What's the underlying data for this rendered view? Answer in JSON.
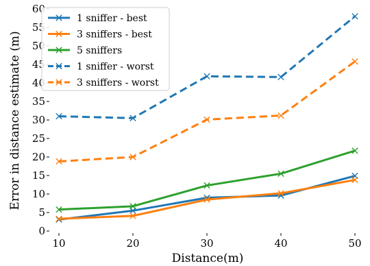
{
  "chart_data": {
    "type": "line",
    "title": "",
    "xlabel": "Distance(m)",
    "ylabel": "Error in distance estimate (m)",
    "x": [
      10,
      20,
      30,
      40,
      50
    ],
    "xlim": [
      10,
      50
    ],
    "ylim": [
      0,
      60
    ],
    "xticks": [
      "10",
      "20",
      "30",
      "40",
      "50"
    ],
    "yticks": [
      "0",
      "5",
      "10",
      "15",
      "20",
      "25",
      "30",
      "35",
      "40",
      "45",
      "50",
      "55",
      "60"
    ],
    "grid": false,
    "legend_position": "top-left",
    "series": [
      {
        "name": "1 sniffer - best",
        "values": [
          3.1,
          5.5,
          9.0,
          9.6,
          14.9
        ],
        "color": "#1f77b4",
        "dashed": false,
        "marker": true
      },
      {
        "name": "3 sniffers - best",
        "values": [
          3.3,
          4.1,
          8.5,
          10.2,
          13.8
        ],
        "color": "#ff7f0e",
        "dashed": false,
        "marker": true
      },
      {
        "name": "5 sniffers",
        "values": [
          5.8,
          6.7,
          12.3,
          15.5,
          21.7
        ],
        "color": "#2ca02c",
        "dashed": false,
        "marker": false
      },
      {
        "name": "1 sniffer - worst",
        "values": [
          31.0,
          30.5,
          41.8,
          41.6,
          58.0
        ],
        "color": "#1f77b4",
        "dashed": true,
        "marker": true
      },
      {
        "name": "3 sniffers - worst",
        "values": [
          18.8,
          20.0,
          30.1,
          31.2,
          45.8
        ],
        "color": "#ff7f0e",
        "dashed": true,
        "marker": true
      }
    ]
  }
}
